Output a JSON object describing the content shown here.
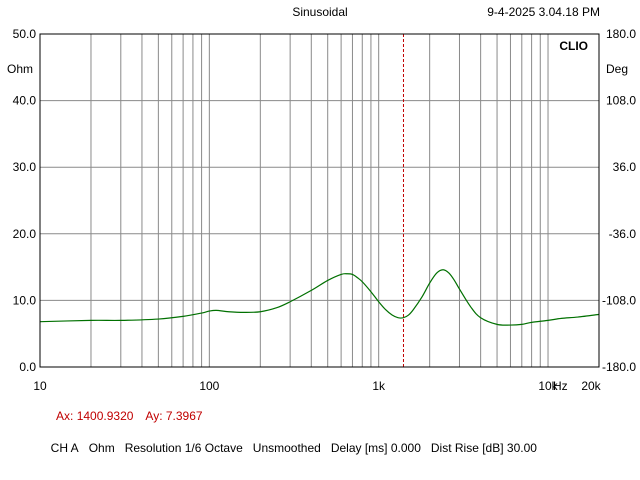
{
  "header": {
    "mode": "Sinusoidal",
    "timestamp": "9-4-2025 3.04.18 PM",
    "brand": "CLIO"
  },
  "cursor": {
    "ax_label": "Ax: 1400.9320",
    "ay_label": "Ay: 7.3967",
    "x": 1400.932,
    "color": "#c00000"
  },
  "footer": {
    "channel": "CH A",
    "unit": "Ohm",
    "resolution": "Resolution 1/6 Octave",
    "smoothing": "Unsmoothed",
    "delay": "Delay [ms] 0.000",
    "dist_rise": "Dist Rise [dB] 30.00"
  },
  "chart_data": {
    "type": "line",
    "x_scale": "log",
    "xlim": [
      10,
      20000
    ],
    "ylim": [
      0,
      50
    ],
    "y2lim": [
      -180,
      180
    ],
    "grid": true,
    "ylabel": "Ohm",
    "y2label": "Deg",
    "x_ticks": [
      "10",
      "100",
      "1k",
      "10k",
      "20k"
    ],
    "x_unit": "Hz",
    "y_ticks": [
      "0.0",
      "10.0",
      "20.0",
      "30.0",
      "40.0",
      "50.0"
    ],
    "y2_ticks": [
      "-180.0",
      "-108.0",
      "-36.0",
      "36.0",
      "108.0",
      "180.0"
    ],
    "series": [
      {
        "color": "#007000",
        "x": [
          10,
          20,
          30,
          50,
          70,
          90,
          100,
          110,
          130,
          160,
          200,
          250,
          300,
          400,
          500,
          600,
          650,
          700,
          750,
          800,
          900,
          1000,
          1100,
          1200,
          1300,
          1400,
          1500,
          1600,
          1800,
          2000,
          2200,
          2400,
          2600,
          2800,
          3000,
          3500,
          4000,
          5000,
          6000,
          7000,
          8000,
          10000,
          12000,
          15000,
          20000
        ],
        "y": [
          6.8,
          7.0,
          7.0,
          7.2,
          7.6,
          8.1,
          8.4,
          8.5,
          8.3,
          8.2,
          8.3,
          8.9,
          9.8,
          11.5,
          13.0,
          13.9,
          14.0,
          13.9,
          13.4,
          12.8,
          11.3,
          9.8,
          8.6,
          7.8,
          7.4,
          7.4,
          7.8,
          8.6,
          10.5,
          12.6,
          14.1,
          14.6,
          14.1,
          13.0,
          11.7,
          9.0,
          7.4,
          6.4,
          6.3,
          6.4,
          6.7,
          7.0,
          7.3,
          7.5,
          7.9
        ]
      }
    ]
  }
}
